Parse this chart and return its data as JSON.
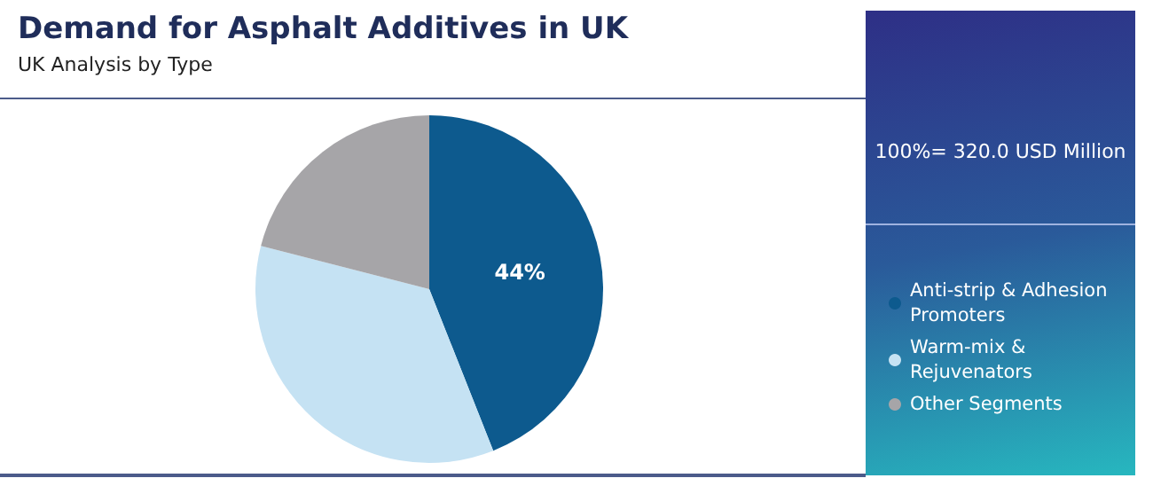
{
  "chart_data": {
    "type": "pie",
    "title": "Demand for Asphalt Additives in UK",
    "subtitle": "UK Analysis by Type",
    "categories": [
      "Anti-strip & Adhesion Promoters",
      "Warm-mix & Rejuvenators",
      "Other Segments"
    ],
    "values": [
      44,
      35,
      21
    ],
    "colors": [
      "#0d5a8e",
      "#c5e2f3",
      "#a6a5a8"
    ],
    "value_labels": [
      "44%",
      null,
      null
    ],
    "legend": "right",
    "annotations": [
      "100%= 320.0 USD Million"
    ]
  }
}
